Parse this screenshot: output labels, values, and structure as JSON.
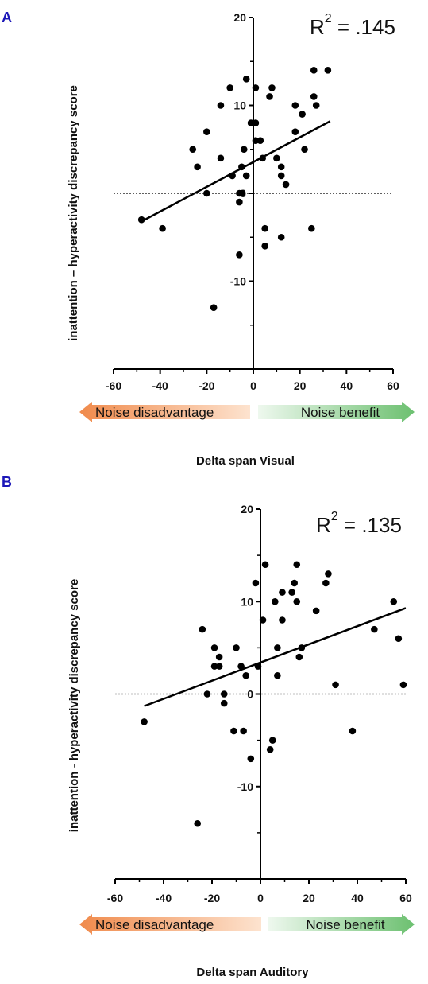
{
  "colors": {
    "panel_letter": "#1c17b8",
    "points": "#000000",
    "arrow_left": "#f08a4b",
    "arrow_right": "#6cc070"
  },
  "chart_data": [
    {
      "panel": "A",
      "type": "scatter",
      "annotation_prefix": "R",
      "annotation_sup": "2",
      "annotation_value": " = .145",
      "ylabel": "inattention – hyperactivity discrepancy score",
      "xlabel": "Delta span Visual",
      "xlim": [
        -60,
        60
      ],
      "ylim": [
        -20,
        20
      ],
      "x_ticks": [
        "-60",
        "-40",
        "-20",
        "0",
        "20",
        "40",
        "60"
      ],
      "y_ticks": [
        "20",
        "10",
        "0",
        "-10"
      ],
      "arrow_left_label": "Noise disadvantage",
      "arrow_right_label": "Noise benefit",
      "zero_line": "dotted",
      "fit_line": {
        "x": [
          -48,
          33
        ],
        "y": [
          -3.2,
          8.2
        ]
      },
      "points": [
        [
          -48,
          -3
        ],
        [
          -39,
          -4
        ],
        [
          -26,
          5
        ],
        [
          -24,
          3
        ],
        [
          -20,
          7
        ],
        [
          -20,
          0
        ],
        [
          -14,
          10
        ],
        [
          -14,
          4
        ],
        [
          -10,
          12
        ],
        [
          -9,
          2
        ],
        [
          -6,
          0
        ],
        [
          -6,
          -1
        ],
        [
          -6,
          -7
        ],
        [
          -5,
          3
        ],
        [
          -5,
          0
        ],
        [
          -4,
          5
        ],
        [
          -3,
          13
        ],
        [
          -3,
          2
        ],
        [
          -1,
          8
        ],
        [
          1,
          8
        ],
        [
          1,
          12
        ],
        [
          1,
          6
        ],
        [
          3,
          6
        ],
        [
          4,
          4
        ],
        [
          5,
          -4
        ],
        [
          5,
          -6
        ],
        [
          7,
          11
        ],
        [
          8,
          12
        ],
        [
          10,
          4
        ],
        [
          12,
          -5
        ],
        [
          12,
          3
        ],
        [
          12,
          2
        ],
        [
          14,
          1
        ],
        [
          18,
          10
        ],
        [
          18,
          7
        ],
        [
          21,
          9
        ],
        [
          22,
          5
        ],
        [
          25,
          -4
        ],
        [
          26,
          14
        ],
        [
          26,
          11
        ],
        [
          27,
          10
        ],
        [
          32,
          14
        ],
        [
          -17,
          -13
        ]
      ]
    },
    {
      "panel": "B",
      "type": "scatter",
      "annotation_prefix": "R",
      "annotation_sup": "2",
      "annotation_value": " = .135",
      "ylabel": "inattention - hyperactivity discrepancy score",
      "xlabel": "Delta span Auditory",
      "xlim": [
        -60,
        60
      ],
      "ylim": [
        -20,
        20
      ],
      "x_ticks": [
        "-60",
        "-40",
        "-20",
        "0",
        "20",
        "40",
        "60"
      ],
      "y_ticks": [
        "20",
        "10",
        "0",
        "-10"
      ],
      "arrow_left_label": "Noise disadvantage",
      "arrow_right_label": "Noise benefit",
      "zero_line": "dotted",
      "fit_line": {
        "x": [
          -48,
          60
        ],
        "y": [
          -1.3,
          9.3
        ]
      },
      "points": [
        [
          -48,
          -3
        ],
        [
          -26,
          -14
        ],
        [
          -24,
          7
        ],
        [
          -22,
          0
        ],
        [
          -19,
          5
        ],
        [
          -19,
          3
        ],
        [
          -17,
          4
        ],
        [
          -17,
          3
        ],
        [
          -15,
          0
        ],
        [
          -15,
          -1
        ],
        [
          -11,
          -4
        ],
        [
          -10,
          5
        ],
        [
          -8,
          3
        ],
        [
          -7,
          -4
        ],
        [
          -6,
          2
        ],
        [
          -4,
          -7
        ],
        [
          -2,
          12
        ],
        [
          -1,
          3
        ],
        [
          1,
          8
        ],
        [
          2,
          14
        ],
        [
          4,
          -6
        ],
        [
          5,
          -5
        ],
        [
          6,
          10
        ],
        [
          7,
          5
        ],
        [
          7,
          2
        ],
        [
          9,
          11
        ],
        [
          9,
          8
        ],
        [
          13,
          11
        ],
        [
          14,
          12
        ],
        [
          15,
          14
        ],
        [
          15,
          10
        ],
        [
          16,
          4
        ],
        [
          17,
          5
        ],
        [
          23,
          9
        ],
        [
          27,
          12
        ],
        [
          28,
          13
        ],
        [
          31,
          1
        ],
        [
          38,
          -4
        ],
        [
          47,
          7
        ],
        [
          55,
          10
        ],
        [
          57,
          6
        ],
        [
          59,
          1
        ]
      ]
    }
  ]
}
